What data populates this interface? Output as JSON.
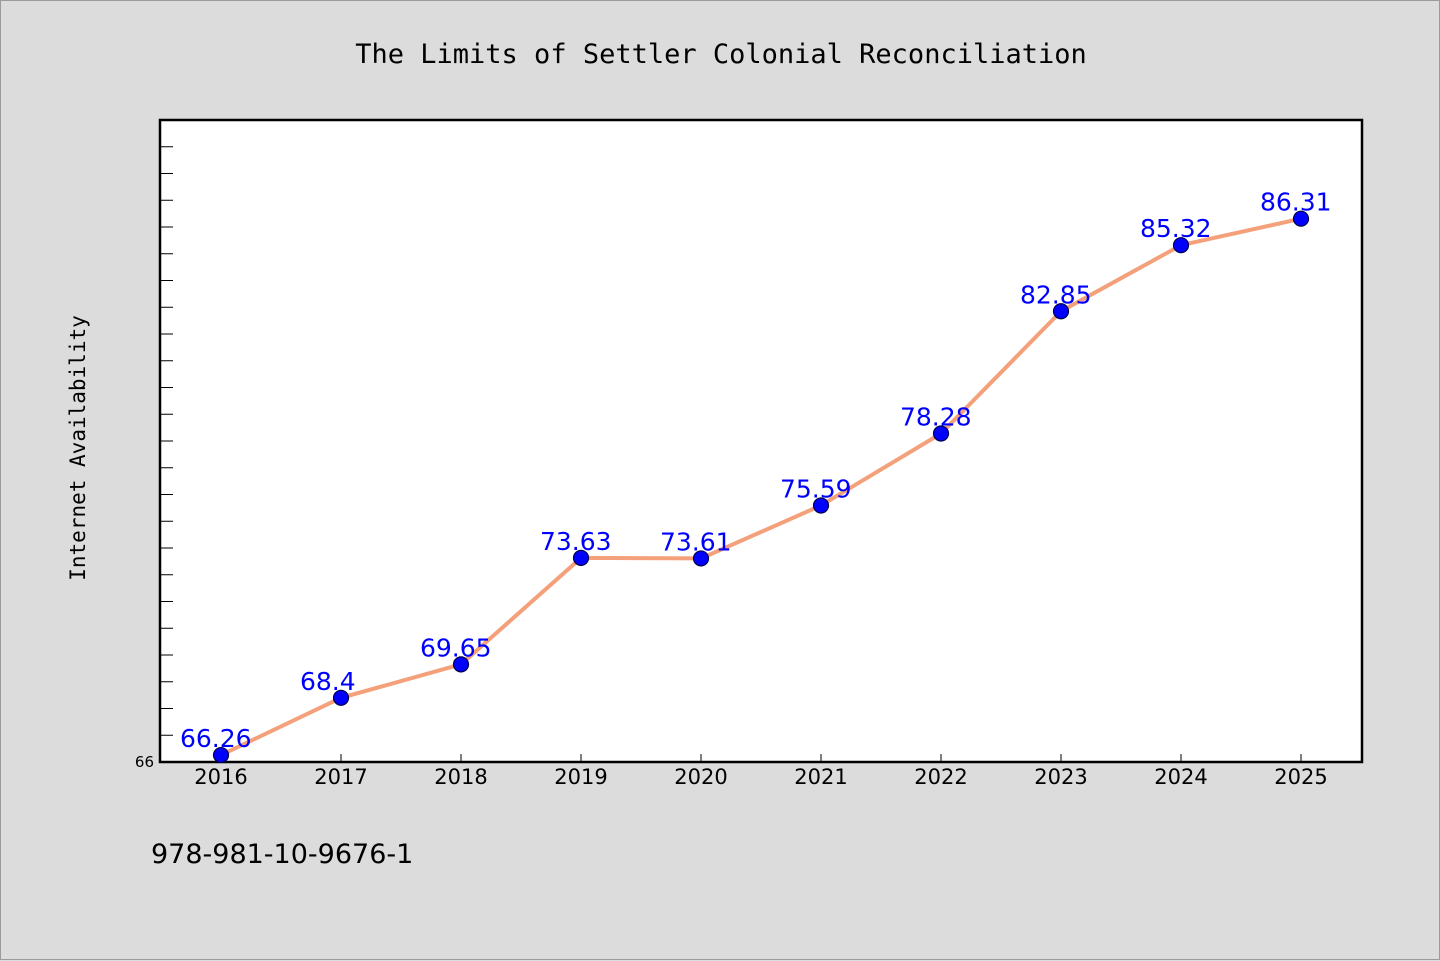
{
  "chart_data": {
    "type": "line",
    "title": "The Limits of Settler Colonial Reconciliation",
    "xlabel": "",
    "ylabel": "Internet Availability",
    "categories": [
      "2016",
      "2017",
      "2018",
      "2019",
      "2020",
      "2021",
      "2022",
      "2023",
      "2024",
      "2025"
    ],
    "series": [
      {
        "values": [
          66.26,
          68.4,
          69.65,
          73.63,
          73.61,
          75.59,
          78.28,
          82.85,
          85.32,
          86.31
        ],
        "labels": [
          "66.26",
          "68.4",
          "69.65",
          "73.63",
          "73.61",
          "75.59",
          "78.28",
          "82.85",
          "85.32",
          "86.31"
        ],
        "line_color": "#f4a07a",
        "marker_color": "#0000ff"
      }
    ],
    "ylim": [
      66,
      90
    ],
    "ytick_labels": [
      "66"
    ],
    "grid": false,
    "legend": "none",
    "background_color": "#dcdcdc",
    "plot_background_color": "#ffffff"
  },
  "footer": {
    "isbn": "978-981-10-9676-1"
  }
}
